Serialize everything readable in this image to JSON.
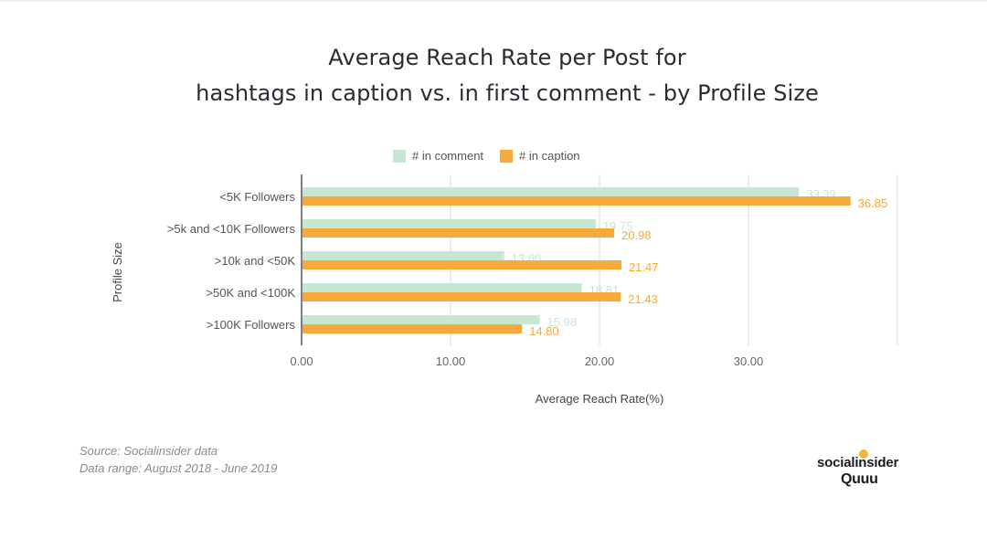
{
  "title_line1": "Average Reach Rate per Post for",
  "title_line2": "hashtags in caption vs. in first comment - by Profile Size",
  "legend": [
    {
      "label": "# in comment",
      "color": "#c6e8d3"
    },
    {
      "label": "# in caption",
      "color": "#f7a93a"
    }
  ],
  "footer": {
    "source": "Source: Socialinsider data",
    "range": "Data range: August 2018 - June 2019"
  },
  "logo": {
    "line1": "socialinsider",
    "line2": "Quuu",
    "accent": "#f4b63a"
  },
  "chart_data": {
    "type": "bar",
    "orientation": "horizontal",
    "categories": [
      "<5K Followers",
      ">5k and <10K Followers",
      ">10k and <50K",
      ">50K and <100K",
      ">100K Followers"
    ],
    "series": [
      {
        "name": "# in comment",
        "color": "#c6e8d3",
        "label_color": "#c6e8d3",
        "values": [
          33.39,
          19.75,
          13.6,
          18.81,
          15.98
        ]
      },
      {
        "name": "# in caption",
        "color": "#f7a93a",
        "label_color": "#f7a93a",
        "values": [
          36.85,
          20.98,
          21.47,
          21.43,
          14.8
        ]
      }
    ],
    "xlabel": "Average Reach Rate(%)",
    "ylabel": "Profile Size",
    "xlim": [
      0,
      40
    ],
    "xticks": [
      "0.00",
      "10.00",
      "20.00",
      "30.00"
    ],
    "tick_values": [
      0,
      10,
      20,
      30
    ],
    "grid": true,
    "legend_position": "top"
  }
}
